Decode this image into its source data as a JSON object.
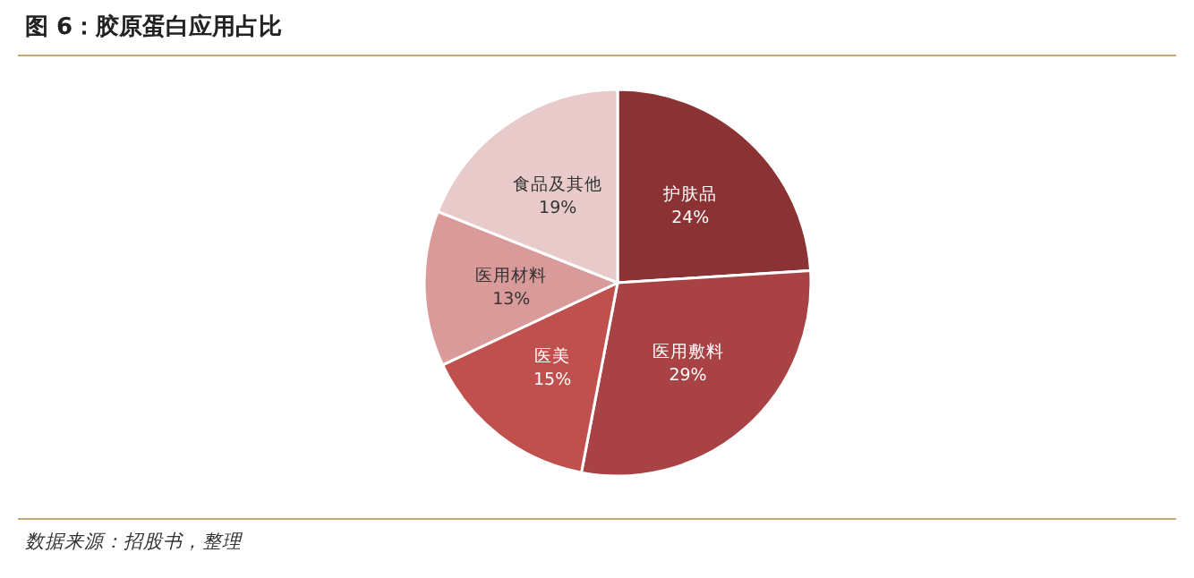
{
  "chart_data": {
    "type": "pie",
    "title": "图 6：胶原蛋白应用占比",
    "categories": [
      "护肤品",
      "医用敷料",
      "医美",
      "医用材料",
      "食品及其他"
    ],
    "values": [
      24,
      29,
      15,
      13,
      19
    ],
    "value_labels": [
      "24%",
      "29%",
      "15%",
      "13%",
      "19%"
    ],
    "colors": [
      "#8b3234",
      "#a94244",
      "#c0504d",
      "#d99b99",
      "#e8cacb"
    ],
    "annotations": [
      "数据来源：招股书，整理"
    ]
  }
}
